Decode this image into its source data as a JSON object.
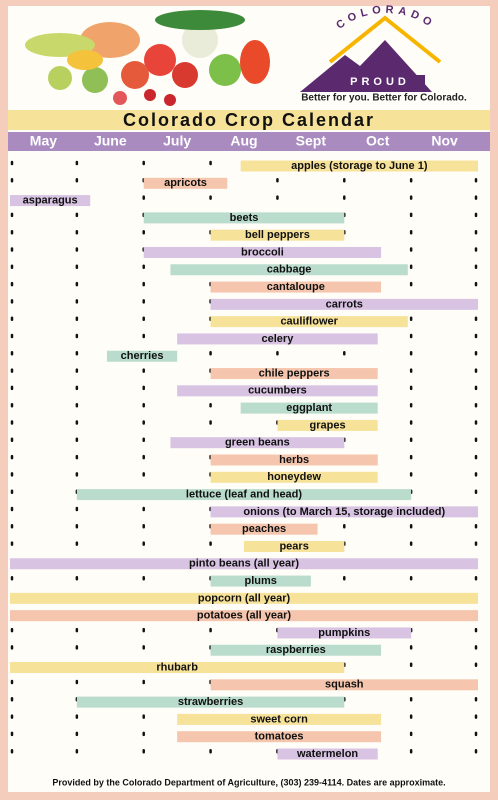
{
  "header": {
    "arc_text": "COLORADO",
    "word": "PROUD",
    "tagline": "Better for you. Better for Colorado."
  },
  "chart_data": {
    "type": "gantt",
    "title": "Colorado Crop Calendar",
    "categories": [
      "May",
      "June",
      "July",
      "Aug",
      "Sept",
      "Oct",
      "Nov"
    ],
    "xlim": [
      0,
      7
    ],
    "bars": [
      {
        "name": "apples (storage to June 1)",
        "start": 3.45,
        "end": 7,
        "color": "#f7e29a"
      },
      {
        "name": "apricots",
        "start": 2,
        "end": 3.25,
        "color": "#f5c6ad"
      },
      {
        "name": "asparagus",
        "start": 0,
        "end": 1.2,
        "color": "#d8c3e3"
      },
      {
        "name": "beets",
        "start": 2,
        "end": 5,
        "color": "#b9dccc"
      },
      {
        "name": "bell peppers",
        "start": 3,
        "end": 5,
        "color": "#f7e29a"
      },
      {
        "name": "broccoli",
        "start": 2,
        "end": 5.55,
        "color": "#d8c3e3"
      },
      {
        "name": "cabbage",
        "start": 2.4,
        "end": 5.95,
        "color": "#b9dccc"
      },
      {
        "name": "cantaloupe",
        "start": 3,
        "end": 5.55,
        "color": "#f5c6ad"
      },
      {
        "name": "carrots",
        "start": 3,
        "end": 7,
        "color": "#d8c3e3"
      },
      {
        "name": "cauliflower",
        "start": 3,
        "end": 5.95,
        "color": "#f7e29a"
      },
      {
        "name": "celery",
        "start": 2.5,
        "end": 5.5,
        "color": "#d8c3e3"
      },
      {
        "name": "cherries",
        "start": 1.45,
        "end": 2.5,
        "color": "#b9dccc"
      },
      {
        "name": "chile peppers",
        "start": 3,
        "end": 5.5,
        "color": "#f5c6ad"
      },
      {
        "name": "cucumbers",
        "start": 2.5,
        "end": 5.5,
        "color": "#d8c3e3"
      },
      {
        "name": "eggplant",
        "start": 3.45,
        "end": 5.5,
        "color": "#b9dccc"
      },
      {
        "name": "grapes",
        "start": 4,
        "end": 5.5,
        "color": "#f7e29a"
      },
      {
        "name": "green beans",
        "start": 2.4,
        "end": 5,
        "color": "#d8c3e3"
      },
      {
        "name": "herbs",
        "start": 3,
        "end": 5.5,
        "color": "#f5c6ad"
      },
      {
        "name": "honeydew",
        "start": 3,
        "end": 5.5,
        "color": "#f7e29a"
      },
      {
        "name": "lettuce (leaf and head)",
        "start": 1,
        "end": 6,
        "color": "#b9dccc"
      },
      {
        "name": "onions (to March 15, storage included)",
        "start": 3,
        "end": 7,
        "color": "#d8c3e3"
      },
      {
        "name": "peaches",
        "start": 3,
        "end": 4.6,
        "color": "#f5c6ad"
      },
      {
        "name": "pears",
        "start": 3.5,
        "end": 5,
        "color": "#f7e29a"
      },
      {
        "name": "pinto beans (all year)",
        "start": 0,
        "end": 7,
        "color": "#d8c3e3"
      },
      {
        "name": "plums",
        "start": 3,
        "end": 4.5,
        "color": "#b9dccc"
      },
      {
        "name": "popcorn (all year)",
        "start": 0,
        "end": 7,
        "color": "#f7e29a"
      },
      {
        "name": "potatoes (all year)",
        "start": 0,
        "end": 7,
        "color": "#f5c6ad"
      },
      {
        "name": "pumpkins",
        "start": 4,
        "end": 6,
        "color": "#d8c3e3"
      },
      {
        "name": "raspberries",
        "start": 3,
        "end": 5.55,
        "color": "#b9dccc"
      },
      {
        "name": "rhubarb",
        "start": 0,
        "end": 5,
        "color": "#f7e29a"
      },
      {
        "name": "squash",
        "start": 3,
        "end": 7,
        "color": "#f5c6ad"
      },
      {
        "name": "strawberries",
        "start": 1,
        "end": 5,
        "color": "#b9dccc"
      },
      {
        "name": "sweet corn",
        "start": 2.5,
        "end": 5.55,
        "color": "#f7e29a"
      },
      {
        "name": "tomatoes",
        "start": 2.5,
        "end": 5.55,
        "color": "#f5c6ad"
      },
      {
        "name": "watermelon",
        "start": 4,
        "end": 5.5,
        "color": "#d8c3e3"
      }
    ]
  },
  "footer": "Provided by the Colorado Department of Agriculture, (303) 239-4114. Dates are approximate."
}
